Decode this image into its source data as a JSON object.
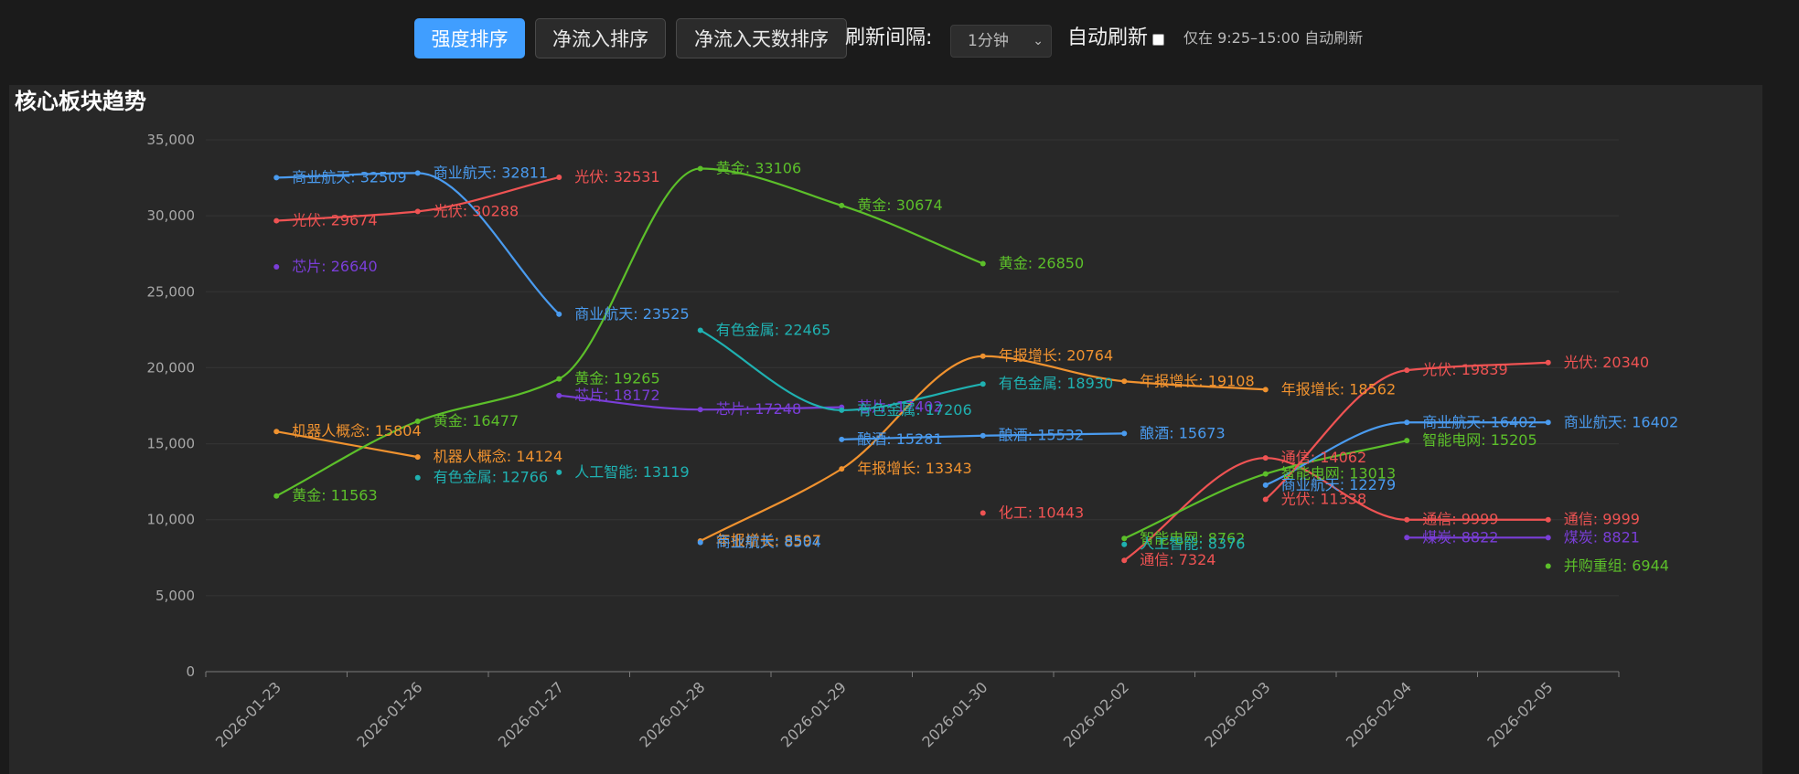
{
  "toolbar": {
    "buttons": [
      "强度排序",
      "净流入排序",
      "净流入天数排序"
    ],
    "active_index": 0,
    "interval_label": "刷新间隔:",
    "interval_value": "1分钟",
    "auto_refresh_label": "自动刷新",
    "auto_refresh_checked": false,
    "hint": "仅在 9:25–15:00 自动刷新",
    "accent_color": "#409eff"
  },
  "panel": {
    "title": "核心板块趋势"
  },
  "chart_data": {
    "type": "line",
    "title": "核心板块趋势",
    "xlabel": "",
    "ylabel": "",
    "categories": [
      "2026-01-23",
      "2026-01-26",
      "2026-01-27",
      "2026-01-28",
      "2026-01-29",
      "2026-01-30",
      "2026-02-02",
      "2026-02-03",
      "2026-02-04",
      "2026-02-05"
    ],
    "ylim": [
      0,
      35000
    ],
    "yticks": [
      0,
      5000,
      10000,
      15000,
      20000,
      25000,
      30000,
      35000
    ],
    "ytick_labels": [
      "0",
      "5,000",
      "10,000",
      "15,000",
      "20,000",
      "25,000",
      "30,000",
      "35,000"
    ],
    "grid": true,
    "legend": "none",
    "series": [
      {
        "name": "商业航天",
        "color": "#4a9bef",
        "points": [
          [
            0,
            32509
          ],
          [
            1,
            32811
          ],
          [
            2,
            23525
          ]
        ]
      },
      {
        "name": "光伏",
        "color": "#ef5353",
        "points": [
          [
            0,
            29674
          ],
          [
            1,
            30288
          ],
          [
            2,
            32531
          ]
        ]
      },
      {
        "name": "芯片",
        "color": "#7a3ed8",
        "points": [
          [
            0,
            26640
          ]
        ]
      },
      {
        "name": "机器人概念",
        "color": "#f0922f",
        "points": [
          [
            0,
            15804
          ],
          [
            1,
            14124
          ]
        ]
      },
      {
        "name": "黄金",
        "color": "#5cbf2a",
        "points": [
          [
            0,
            11563
          ],
          [
            1,
            16477
          ],
          [
            2,
            19265
          ],
          [
            3,
            33106
          ],
          [
            4,
            30674
          ],
          [
            5,
            26850
          ]
        ]
      },
      {
        "name": "有色金属",
        "color": "#1fb1b1",
        "points": [
          [
            1,
            12766
          ]
        ]
      },
      {
        "name": "人工智能",
        "color": "#1fb1b1",
        "points": [
          [
            2,
            13119
          ]
        ]
      },
      {
        "name": "芯片",
        "color": "#7a3ed8",
        "points": [
          [
            2,
            18172
          ],
          [
            3,
            17248
          ],
          [
            4,
            17402
          ]
        ]
      },
      {
        "name": "有色金属",
        "color": "#1fb1b1",
        "points": [
          [
            3,
            22465
          ],
          [
            4,
            17206
          ],
          [
            5,
            18930
          ]
        ]
      },
      {
        "name": "年报增长",
        "color": "#f0922f",
        "points": [
          [
            3,
            8597
          ],
          [
            4,
            13343
          ],
          [
            5,
            20764
          ],
          [
            6,
            19108
          ],
          [
            7,
            18562
          ]
        ]
      },
      {
        "name": "商业航天",
        "color": "#4a9bef",
        "points": [
          [
            3,
            8504
          ]
        ]
      },
      {
        "name": "酿酒",
        "color": "#4a9bef",
        "points": [
          [
            4,
            15281
          ],
          [
            5,
            15532
          ],
          [
            6,
            15673
          ]
        ]
      },
      {
        "name": "化工",
        "color": "#ef5353",
        "points": [
          [
            5,
            10443
          ]
        ]
      },
      {
        "name": "通信",
        "color": "#ef5353",
        "points": [
          [
            6,
            7324
          ],
          [
            7,
            14062
          ],
          [
            8,
            9999
          ],
          [
            9,
            9999
          ]
        ]
      },
      {
        "name": "智能电网",
        "color": "#5cbf2a",
        "points": [
          [
            6,
            8762
          ],
          [
            7,
            13013
          ],
          [
            8,
            15205
          ]
        ]
      },
      {
        "name": "人工智能",
        "color": "#1fb1b1",
        "points": [
          [
            6,
            8376
          ]
        ]
      },
      {
        "name": "商业航天",
        "color": "#4a9bef",
        "points": [
          [
            7,
            12279
          ],
          [
            8,
            16402
          ],
          [
            9,
            16402
          ]
        ]
      },
      {
        "name": "光伏",
        "color": "#ef5353",
        "points": [
          [
            7,
            11338
          ],
          [
            8,
            19839
          ],
          [
            9,
            20340
          ]
        ]
      },
      {
        "name": "煤炭",
        "color": "#7a3ed8",
        "points": [
          [
            8,
            8822
          ],
          [
            9,
            8821
          ]
        ]
      },
      {
        "name": "并购重组",
        "color": "#5cbf2a",
        "points": [
          [
            9,
            6944
          ]
        ]
      }
    ]
  }
}
